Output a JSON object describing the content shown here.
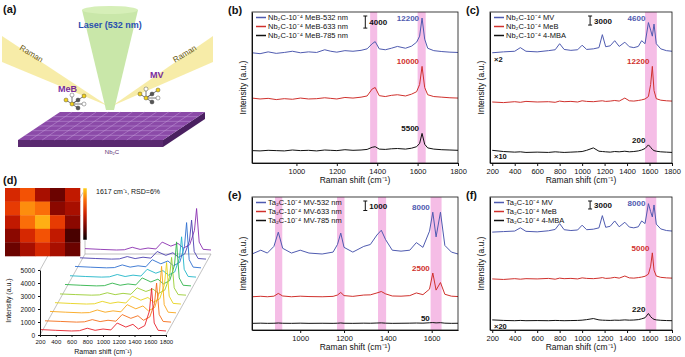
{
  "diagram": {
    "label": "(a)",
    "laser": "Laser (532 nm)",
    "beams": [
      "Raman",
      "Raman"
    ],
    "molecules": [
      "MeB",
      "MV"
    ],
    "substrate": "Nb₂C"
  },
  "chart_data": [
    {
      "type": "line",
      "title": "(b)",
      "xlabel": "Raman shift (cm⁻¹)",
      "ylabel": "Intensity (a.u.)",
      "x": [
        780,
        820,
        860,
        900,
        940,
        980,
        1020,
        1060,
        1100,
        1140,
        1170,
        1200,
        1240,
        1280,
        1320,
        1350,
        1375,
        1390,
        1410,
        1440,
        1470,
        1500,
        1540,
        1570,
        1595,
        1610,
        1622,
        1635,
        1650,
        1680,
        1720,
        1760,
        1800
      ],
      "xlim": [
        780,
        1800
      ],
      "xticks": [
        1000,
        1200,
        1400,
        1600,
        1800
      ],
      "ylim": [
        0,
        50000
      ],
      "tick_labels": "x",
      "grid": false,
      "legend": "upper left",
      "scale_bar": 4000,
      "highlight_bands": [
        [
          1365,
          1400
        ],
        [
          1600,
          1640
        ]
      ],
      "series": [
        {
          "name": "Nb₂C-10⁻⁴ MeB-532 nm",
          "color": "#4f5bb0",
          "peak_label": 12200,
          "values": [
            36500,
            36200,
            36800,
            36300,
            36600,
            37000,
            36500,
            36800,
            36600,
            37500,
            37000,
            36700,
            37200,
            37000,
            37300,
            37800,
            39500,
            40200,
            37800,
            37500,
            38000,
            38600,
            38000,
            38700,
            40000,
            42000,
            48000,
            41000,
            38000,
            37200,
            36900,
            36700,
            36600
          ]
        },
        {
          "name": "Nb₂C-10⁻⁴ MeB-633 nm",
          "color": "#d0312d",
          "peak_label": 10000,
          "values": [
            21500,
            21200,
            21400,
            21000,
            21300,
            21100,
            21500,
            21200,
            21300,
            21600,
            21400,
            21200,
            21700,
            21500,
            21800,
            22200,
            24500,
            25000,
            22300,
            22000,
            22400,
            22600,
            22200,
            22800,
            23600,
            26000,
            32000,
            25000,
            22600,
            22000,
            21800,
            21600,
            21500
          ]
        },
        {
          "name": "Nb₂C-10⁻⁴ MeB-785 nm",
          "color": "#111111",
          "peak_label": 5500,
          "values": [
            4100,
            4000,
            4200,
            4100,
            4000,
            4300,
            4100,
            4200,
            4000,
            4300,
            4200,
            4100,
            4400,
            4200,
            4300,
            4500,
            5200,
            5400,
            4600,
            4500,
            4700,
            4800,
            4600,
            4900,
            5400,
            6500,
            9800,
            6200,
            5000,
            4600,
            4400,
            4300,
            4200
          ]
        }
      ]
    },
    {
      "type": "line",
      "title": "(c)",
      "xlabel": "Raman shift (cm⁻¹)",
      "ylabel": "Intensity (a.u.)",
      "x": [
        200,
        300,
        400,
        450,
        500,
        600,
        700,
        760,
        800,
        840,
        900,
        960,
        1000,
        1040,
        1100,
        1150,
        1180,
        1210,
        1250,
        1290,
        1330,
        1380,
        1420,
        1460,
        1500,
        1530,
        1560,
        1590,
        1610,
        1625,
        1640,
        1660,
        1700,
        1750,
        1800
      ],
      "xlim": [
        180,
        1800
      ],
      "xticks": [
        200,
        400,
        600,
        800,
        1000,
        1200,
        1400,
        1600,
        1800
      ],
      "ylim": [
        0,
        50000
      ],
      "tick_labels": "x",
      "grid": false,
      "legend": "upper left",
      "scale_bar": 3000,
      "highlight_bands": [
        [
          1560,
          1665
        ]
      ],
      "series": [
        {
          "name": "Nb₂C-10⁻⁴ MV",
          "color": "#4f5bb0",
          "peak_label": 4600,
          "scale_factor": "×2",
          "values": [
            36500,
            36800,
            37000,
            38200,
            37000,
            36800,
            37200,
            37500,
            39500,
            37600,
            37300,
            37500,
            39000,
            37600,
            37800,
            38200,
            42500,
            38500,
            38800,
            40500,
            38600,
            40000,
            38500,
            38200,
            38600,
            40500,
            39500,
            46500,
            44000,
            42000,
            46000,
            39500,
            37800,
            37200,
            37000
          ]
        },
        {
          "name": "Nb₂C-10⁻⁴ MeB",
          "color": "#d0312d",
          "peak_label": 12200,
          "values": [
            20200,
            20000,
            20300,
            20100,
            20400,
            20200,
            20300,
            20100,
            20500,
            20300,
            20400,
            20200,
            20600,
            20400,
            20300,
            20500,
            20600,
            20400,
            20500,
            20700,
            20500,
            21500,
            20600,
            20500,
            20700,
            20900,
            21200,
            22000,
            26000,
            32000,
            24000,
            21300,
            20800,
            20600,
            20500
          ]
        },
        {
          "name": "Nb₂C-10⁻⁴ 4-MBA",
          "color": "#111111",
          "peak_label": 200,
          "scale_factor": "×10",
          "values": [
            4200,
            3800,
            3600,
            3700,
            3500,
            3600,
            3500,
            3700,
            3600,
            3500,
            3600,
            3700,
            3800,
            4200,
            5000,
            3900,
            3800,
            3700,
            3600,
            3800,
            3700,
            3900,
            3700,
            3800,
            4000,
            4300,
            4800,
            6000,
            5200,
            4500,
            4100,
            3900,
            3700,
            3600,
            3500
          ]
        }
      ]
    },
    {
      "type": "waterfall",
      "title": "(d)",
      "xlabel": "Raman shift (cm⁻¹)",
      "ylabel": "Intensity (a.u.)",
      "annotations": [
        "1617 cm⁻¹, RSD=6%"
      ],
      "x": [
        200,
        400,
        600,
        700,
        800,
        900,
        1000,
        1100,
        1180,
        1290,
        1380,
        1450,
        1530,
        1590,
        1617,
        1650,
        1700,
        1800
      ],
      "xlim": [
        200,
        1800
      ],
      "xticks": [
        200,
        400,
        600,
        800,
        1000,
        1200,
        1400,
        1600,
        1800
      ],
      "ylim": [
        0,
        5000
      ],
      "yticks": [
        0,
        1000,
        2000,
        3000,
        4000,
        5000
      ],
      "tick_labels": true,
      "grid": false,
      "map": {
        "cells": [
          [
            3500,
            3700,
            3300,
            3100,
            3400
          ],
          [
            3600,
            3900,
            3800,
            3200,
            3300
          ],
          [
            3400,
            3800,
            4000,
            3600,
            3200
          ],
          [
            3200,
            3500,
            3700,
            3400,
            3000
          ],
          [
            3100,
            3300,
            3500,
            3300,
            3100
          ]
        ],
        "colorbar_range": [
          2800,
          4100
        ]
      },
      "series": [
        {
          "color": "#e8202a",
          "values": [
            420,
            360,
            310,
            330,
            520,
            360,
            460,
            390,
            920,
            610,
            820,
            460,
            720,
            1850,
            3600,
            920,
            360,
            310
          ]
        },
        {
          "color": "#f46d1a",
          "values": [
            400,
            350,
            300,
            320,
            490,
            340,
            440,
            370,
            880,
            590,
            790,
            440,
            690,
            1700,
            3300,
            880,
            350,
            300
          ]
        },
        {
          "color": "#f9a61a",
          "values": [
            430,
            370,
            320,
            340,
            540,
            370,
            470,
            400,
            950,
            630,
            850,
            470,
            740,
            1950,
            3900,
            950,
            370,
            320
          ]
        },
        {
          "color": "#e6d21c",
          "values": [
            410,
            350,
            305,
            325,
            510,
            355,
            455,
            385,
            910,
            600,
            810,
            455,
            710,
            1800,
            3500,
            910,
            355,
            305
          ]
        },
        {
          "color": "#9acd32",
          "values": [
            390,
            340,
            295,
            315,
            480,
            335,
            435,
            365,
            860,
            580,
            770,
            430,
            680,
            1650,
            3200,
            860,
            340,
            295
          ]
        },
        {
          "color": "#2fb34a",
          "values": [
            425,
            365,
            315,
            335,
            530,
            365,
            465,
            395,
            930,
            620,
            835,
            465,
            730,
            1900,
            3700,
            930,
            365,
            315
          ]
        },
        {
          "color": "#1fb5c8",
          "values": [
            405,
            345,
            300,
            320,
            500,
            345,
            450,
            380,
            900,
            600,
            800,
            450,
            700,
            1750,
            3400,
            900,
            350,
            300
          ]
        },
        {
          "color": "#2f6fd0",
          "values": [
            430,
            370,
            320,
            340,
            545,
            375,
            475,
            405,
            945,
            630,
            850,
            475,
            745,
            1950,
            3800,
            945,
            375,
            320
          ]
        },
        {
          "color": "#4b3fb0",
          "values": [
            400,
            345,
            300,
            318,
            495,
            340,
            445,
            375,
            885,
            590,
            790,
            445,
            695,
            1700,
            3300,
            885,
            345,
            300
          ]
        },
        {
          "color": "#8a2fb0",
          "values": [
            415,
            355,
            308,
            328,
            515,
            355,
            458,
            388,
            915,
            605,
            815,
            458,
            715,
            1820,
            3500,
            915,
            358,
            308
          ]
        }
      ]
    },
    {
      "type": "line",
      "title": "(e)",
      "xlabel": "Raman shift (cm⁻¹)",
      "ylabel": "Intensity (a.u.)",
      "x": [
        780,
        820,
        850,
        880,
        900,
        920,
        960,
        1000,
        1040,
        1100,
        1150,
        1170,
        1185,
        1200,
        1240,
        1290,
        1320,
        1350,
        1370,
        1390,
        1420,
        1460,
        1500,
        1530,
        1560,
        1590,
        1605,
        1620,
        1640,
        1660,
        1690,
        1720
      ],
      "xlim": [
        780,
        1720
      ],
      "xticks": [
        1000,
        1200,
        1400,
        1600
      ],
      "ylim": [
        0,
        14000
      ],
      "tick_labels": "x",
      "grid": false,
      "legend": "upper left",
      "scale_bar": 1000,
      "highlight_bands": [
        [
          885,
          918
        ],
        [
          1168,
          1202
        ],
        [
          1355,
          1392
        ],
        [
          1595,
          1645
        ]
      ],
      "series": [
        {
          "name": "Ta₂C-10⁻⁴ MV-532 nm",
          "color": "#4f5bb0",
          "peak_label": 8000,
          "values": [
            8000,
            8400,
            8100,
            8800,
            10300,
            8600,
            8100,
            8400,
            8100,
            8000,
            8200,
            9000,
            10200,
            8700,
            8200,
            8800,
            9000,
            10000,
            10500,
            9500,
            8400,
            8300,
            8400,
            9200,
            8700,
            10400,
            12400,
            9800,
            12400,
            8900,
            8200,
            8000
          ]
        },
        {
          "name": "Ta₂C-10⁻⁴ MV-633 nm",
          "color": "#d0312d",
          "peak_label": 2500,
          "values": [
            3500,
            3550,
            3500,
            3560,
            3850,
            3580,
            3500,
            3560,
            3520,
            3500,
            3540,
            3680,
            3950,
            3620,
            3540,
            3680,
            3700,
            3900,
            4050,
            3800,
            3580,
            3560,
            3620,
            3900,
            3720,
            4300,
            6000,
            4200,
            5000,
            3760,
            3560,
            3520
          ]
        },
        {
          "name": "Ta₂C-10⁻⁴ MV-785 nm",
          "color": "#111111",
          "peak_label": 50,
          "values": [
            700,
            720,
            700,
            710,
            740,
            710,
            700,
            720,
            700,
            710,
            700,
            715,
            740,
            710,
            700,
            720,
            710,
            735,
            750,
            720,
            700,
            710,
            720,
            735,
            720,
            760,
            780,
            750,
            770,
            720,
            700,
            710
          ]
        }
      ]
    },
    {
      "type": "line",
      "title": "(f)",
      "xlabel": "Raman shift (cm⁻¹)",
      "ylabel": "Intensity (a.u.)",
      "x": [
        200,
        300,
        400,
        450,
        500,
        600,
        700,
        760,
        800,
        840,
        900,
        960,
        1000,
        1040,
        1100,
        1150,
        1180,
        1210,
        1250,
        1290,
        1330,
        1380,
        1420,
        1460,
        1500,
        1530,
        1560,
        1590,
        1610,
        1625,
        1640,
        1660,
        1700,
        1750,
        1800
      ],
      "xlim": [
        180,
        1800
      ],
      "xticks": [
        200,
        400,
        600,
        800,
        1000,
        1200,
        1400,
        1600,
        1800
      ],
      "ylim": [
        0,
        50000
      ],
      "tick_labels": "x",
      "grid": false,
      "legend": "upper left",
      "scale_bar": 3000,
      "highlight_bands": [
        [
          1565,
          1660
        ]
      ],
      "series": [
        {
          "name": "Ta₂C-10⁻⁴ MV",
          "color": "#4f5bb0",
          "peak_label": 8000,
          "values": [
            36800,
            37000,
            37200,
            38400,
            37100,
            36900,
            37300,
            37800,
            40000,
            37700,
            37400,
            37600,
            39400,
            37700,
            37900,
            38400,
            43000,
            38600,
            39000,
            41000,
            38800,
            40500,
            38700,
            38400,
            38800,
            41000,
            40000,
            47500,
            44500,
            42500,
            47000,
            39800,
            38000,
            37400,
            37200
          ]
        },
        {
          "name": "Ta₂C-10⁻⁴ MeB",
          "color": "#d0312d",
          "peak_label": 5000,
          "values": [
            19200,
            19000,
            19300,
            19100,
            19300,
            19200,
            19400,
            19100,
            19500,
            19300,
            19400,
            19200,
            19600,
            19400,
            19300,
            19500,
            19700,
            19400,
            19500,
            19800,
            19500,
            20300,
            19600,
            19500,
            19700,
            19900,
            20200,
            21000,
            24000,
            29000,
            22500,
            20300,
            19800,
            19600,
            19500
          ]
        },
        {
          "name": "Ta₂C-10⁻⁴ 4-MBA",
          "color": "#111111",
          "peak_label": 220,
          "scale_factor": "×20",
          "values": [
            3800,
            3600,
            3500,
            3600,
            3500,
            3550,
            3500,
            3600,
            3550,
            3500,
            3550,
            3600,
            3700,
            3900,
            4300,
            3800,
            3700,
            3650,
            3600,
            3700,
            3650,
            3800,
            3700,
            3750,
            3900,
            4200,
            4600,
            6200,
            5000,
            4400,
            4000,
            3800,
            3650,
            3550,
            3500
          ]
        }
      ]
    }
  ]
}
